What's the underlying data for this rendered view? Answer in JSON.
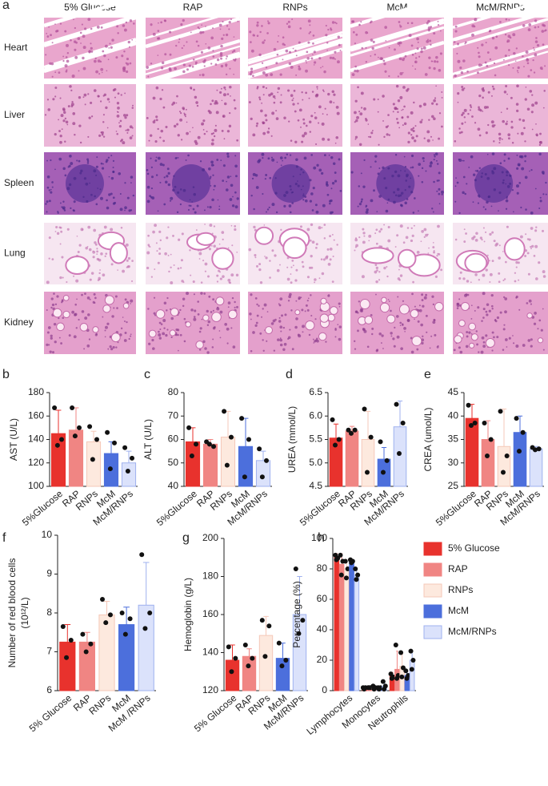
{
  "histology": {
    "panel": "a",
    "columns": [
      "5% Glucose",
      "RAP",
      "RNPs",
      "McM",
      "McM/RNPs"
    ],
    "rows": [
      "Heart",
      "Liver",
      "Spleen",
      "Lung",
      "Kidney"
    ]
  },
  "chart_data": [
    {
      "type": "bar",
      "panel": "b",
      "ylabel": "AST (U/L)",
      "categories": [
        "5%Glucose",
        "RAP",
        "RNPs",
        "McM",
        "McM/RNPs"
      ],
      "values": [
        145,
        148,
        138,
        128,
        120
      ],
      "errors": [
        20,
        19,
        9,
        10,
        10
      ],
      "points": [
        [
          167,
          140,
          135
        ],
        [
          167,
          150,
          143
        ],
        [
          151,
          140,
          123
        ],
        [
          146,
          137,
          115
        ],
        [
          133,
          124,
          113
        ]
      ],
      "colors": [
        "#e8322d",
        "#f08583",
        "#fde9de",
        "#4c6fdc",
        "#dbe2fb"
      ],
      "edge_colors": [
        "#e8322d",
        "#f08583",
        "#f5c8b8",
        "#4c6fdc",
        "#9fb1ef"
      ],
      "ylim": [
        100,
        180
      ],
      "yticks": [
        100,
        120,
        140,
        160,
        180
      ]
    },
    {
      "type": "bar",
      "panel": "c",
      "ylabel": "ALT (U/L)",
      "categories": [
        "5%Glucose",
        "RAP",
        "RNPs",
        "McM",
        "McM/RNPs"
      ],
      "values": [
        59,
        58,
        61,
        57,
        51
      ],
      "errors": [
        6,
        2,
        11,
        12,
        4
      ],
      "points": [
        [
          65,
          58,
          53
        ],
        [
          59,
          57,
          58
        ],
        [
          72,
          61,
          49
        ],
        [
          69,
          60,
          44
        ],
        [
          56,
          51,
          44
        ]
      ],
      "colors": [
        "#e8322d",
        "#f08583",
        "#fde9de",
        "#4c6fdc",
        "#dbe2fb"
      ],
      "edge_colors": [
        "#e8322d",
        "#f08583",
        "#f5c8b8",
        "#4c6fdc",
        "#9fb1ef"
      ],
      "ylim": [
        40,
        80
      ],
      "yticks": [
        40,
        50,
        60,
        70,
        80
      ]
    },
    {
      "type": "bar",
      "panel": "d",
      "ylabel": "UREA (mmol/L)",
      "categories": [
        "5%Glucose",
        "RAP",
        "RNPs",
        "McM",
        "McM/RNPs"
      ],
      "values": [
        5.53,
        5.68,
        5.5,
        5.08,
        5.77
      ],
      "errors": [
        0.3,
        0.1,
        0.6,
        0.25,
        0.55
      ],
      "points": [
        [
          5.92,
          5.5,
          5.38
        ],
        [
          5.7,
          5.7,
          5.63
        ],
        [
          6.15,
          5.55,
          4.8
        ],
        [
          5.45,
          5.05,
          4.8
        ],
        [
          6.25,
          5.85,
          5.2
        ]
      ],
      "colors": [
        "#e8322d",
        "#f08583",
        "#fde9de",
        "#4c6fdc",
        "#dbe2fb"
      ],
      "edge_colors": [
        "#e8322d",
        "#f08583",
        "#f5c8b8",
        "#4c6fdc",
        "#9fb1ef"
      ],
      "ylim": [
        4.5,
        6.5
      ],
      "yticks": [
        4.5,
        {
          "value": 5,
          "label": "5.0"
        },
        5.5,
        {
          "value": 6,
          "label": "6.0"
        },
        6.5
      ]
    },
    {
      "type": "bar",
      "panel": "e",
      "ylabel": "CREA (umol/L)",
      "categories": [
        "5%Glucose",
        "RAP",
        "RNPs",
        "McM",
        "McM/RNPs"
      ],
      "values": [
        39.5,
        35,
        33.5,
        36.5,
        33
      ],
      "errors": [
        3,
        4,
        8,
        3.5,
        0.5
      ],
      "points": [
        [
          42.3,
          38.5,
          38
        ],
        [
          38.5,
          35,
          31.5
        ],
        [
          41,
          31.5,
          28
        ],
        [
          39.5,
          36.5,
          32.5
        ],
        [
          33.3,
          33,
          32.8
        ]
      ],
      "colors": [
        "#e8322d",
        "#f08583",
        "#fde9de",
        "#4c6fdc",
        "#dbe2fb"
      ],
      "edge_colors": [
        "#e8322d",
        "#f08583",
        "#f5c8b8",
        "#4c6fdc",
        "#9fb1ef"
      ],
      "ylim": [
        25,
        45
      ],
      "yticks": [
        25,
        30,
        35,
        40,
        45
      ]
    },
    {
      "type": "bar",
      "panel": "f",
      "ylabel": [
        "Number of red blood cells",
        "(10¹²/L)"
      ],
      "categories": [
        "5% Glucose",
        "RAP",
        "RNPs",
        "McM",
        "McM /RNPs"
      ],
      "values": [
        7.25,
        7.25,
        7.95,
        7.7,
        8.2
      ],
      "errors": [
        0.45,
        0.25,
        0.35,
        0.45,
        1.1
      ],
      "points": [
        [
          7.65,
          7.3,
          6.85
        ],
        [
          7.45,
          7.2,
          7.0
        ],
        [
          8.35,
          7.95,
          7.75
        ],
        [
          8.0,
          7.85,
          7.45
        ],
        [
          9.5,
          8.0,
          7.6
        ]
      ],
      "colors": [
        "#e8322d",
        "#f08583",
        "#fde9de",
        "#4c6fdc",
        "#dbe2fb"
      ],
      "edge_colors": [
        "#e8322d",
        "#f08583",
        "#f5c8b8",
        "#4c6fdc",
        "#9fb1ef"
      ],
      "ylim": [
        6,
        10
      ],
      "yticks": [
        6,
        7,
        8,
        9,
        10
      ]
    },
    {
      "type": "bar",
      "panel": "g",
      "ylabel": "Hemoglobin (g/L)",
      "categories": [
        "5% Glucose",
        "RAP",
        "RNPs",
        "McM",
        "McM/RNPs"
      ],
      "values": [
        136,
        138,
        149,
        137,
        160
      ],
      "errors": [
        8,
        4,
        10,
        8,
        20
      ],
      "points": [
        [
          143,
          137,
          130
        ],
        [
          144,
          137,
          133
        ],
        [
          157,
          154,
          138
        ],
        [
          145,
          136,
          133
        ],
        [
          184,
          157,
          150
        ]
      ],
      "colors": [
        "#e8322d",
        "#f08583",
        "#fde9de",
        "#4c6fdc",
        "#dbe2fb"
      ],
      "edge_colors": [
        "#e8322d",
        "#f08583",
        "#f5c8b8",
        "#4c6fdc",
        "#9fb1ef"
      ],
      "ylim": [
        120,
        200
      ],
      "yticks": [
        120,
        140,
        160,
        180,
        200
      ]
    },
    {
      "type": "grouped_bar",
      "panel": "h",
      "ylabel": "Percentage  (%)",
      "categories": [
        "Lymphocytes",
        "Monocytes",
        "Neutrophils"
      ],
      "series": [
        {
          "name": "5% Glucose",
          "color": "#e8322d",
          "edge_color": "#e8322d",
          "values": [
            88,
            2,
            10
          ],
          "errors": [
            2,
            1,
            2
          ],
          "points": [
            [
              89,
              87,
              86
            ],
            [
              2,
              2,
              1
            ],
            [
              11,
              9,
              8
            ]
          ]
        },
        {
          "name": "RAP",
          "color": "#f08583",
          "edge_color": "#f08583",
          "values": [
            83,
            2,
            14
          ],
          "errors": [
            7,
            1,
            12
          ],
          "points": [
            [
              89,
              85,
              76
            ],
            [
              2,
              2,
              2
            ],
            [
              30,
              10,
              8
            ]
          ]
        },
        {
          "name": "RNPs",
          "color": "#fde9de",
          "edge_color": "#f5c8b8",
          "values": [
            80,
            2,
            16
          ],
          "errors": [
            6,
            1,
            8
          ],
          "points": [
            [
              85,
              80,
              74
            ],
            [
              3,
              2,
              1
            ],
            [
              25,
              15,
              9
            ]
          ]
        },
        {
          "name": "McM",
          "color": "#4c6fdc",
          "edge_color": "#4c6fdc",
          "values": [
            85,
            2,
            10
          ],
          "errors": [
            1,
            1,
            3
          ],
          "points": [
            [
              86,
              85,
              84
            ],
            [
              2,
              2,
              1
            ],
            [
              13,
              10,
              8
            ]
          ]
        },
        {
          "name": "McM/RNPs",
          "color": "#dbe2fb",
          "edge_color": "#9fb1ef",
          "values": [
            76,
            3,
            20
          ],
          "errors": [
            4,
            3,
            6
          ],
          "points": [
            [
              80,
              76,
              73
            ],
            [
              6,
              3,
              1
            ],
            [
              26,
              20,
              14
            ]
          ]
        }
      ],
      "ylim": [
        0,
        100
      ],
      "yticks": [
        0,
        20,
        40,
        60,
        80,
        100
      ]
    }
  ]
}
